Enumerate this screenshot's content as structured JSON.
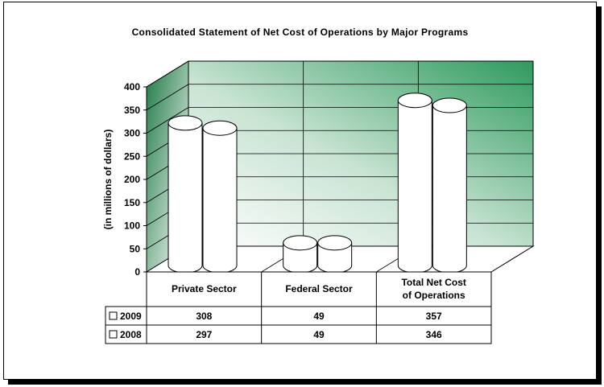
{
  "chart_data": {
    "type": "bar",
    "title": "Consolidated Statement of Net Cost of Operations by Major Programs",
    "ylabel": "(in millions of dollars)",
    "xlabel": "",
    "ylim": [
      0,
      400
    ],
    "yticks": [
      0,
      50,
      100,
      150,
      200,
      250,
      300,
      350,
      400
    ],
    "categories": [
      "Private Sector",
      "Federal Sector",
      "Total Net Cost of Operations"
    ],
    "series": [
      {
        "name": "2009",
        "values": [
          308,
          49,
          357
        ]
      },
      {
        "name": "2008",
        "values": [
          297,
          49,
          346
        ]
      }
    ],
    "table_values": [
      [
        "308",
        "49",
        "357"
      ],
      [
        "297",
        "49",
        "346"
      ]
    ],
    "legend": "data-table",
    "grid": true,
    "wall_color": "#2e9a5e",
    "bar_color": "#ffffff"
  }
}
